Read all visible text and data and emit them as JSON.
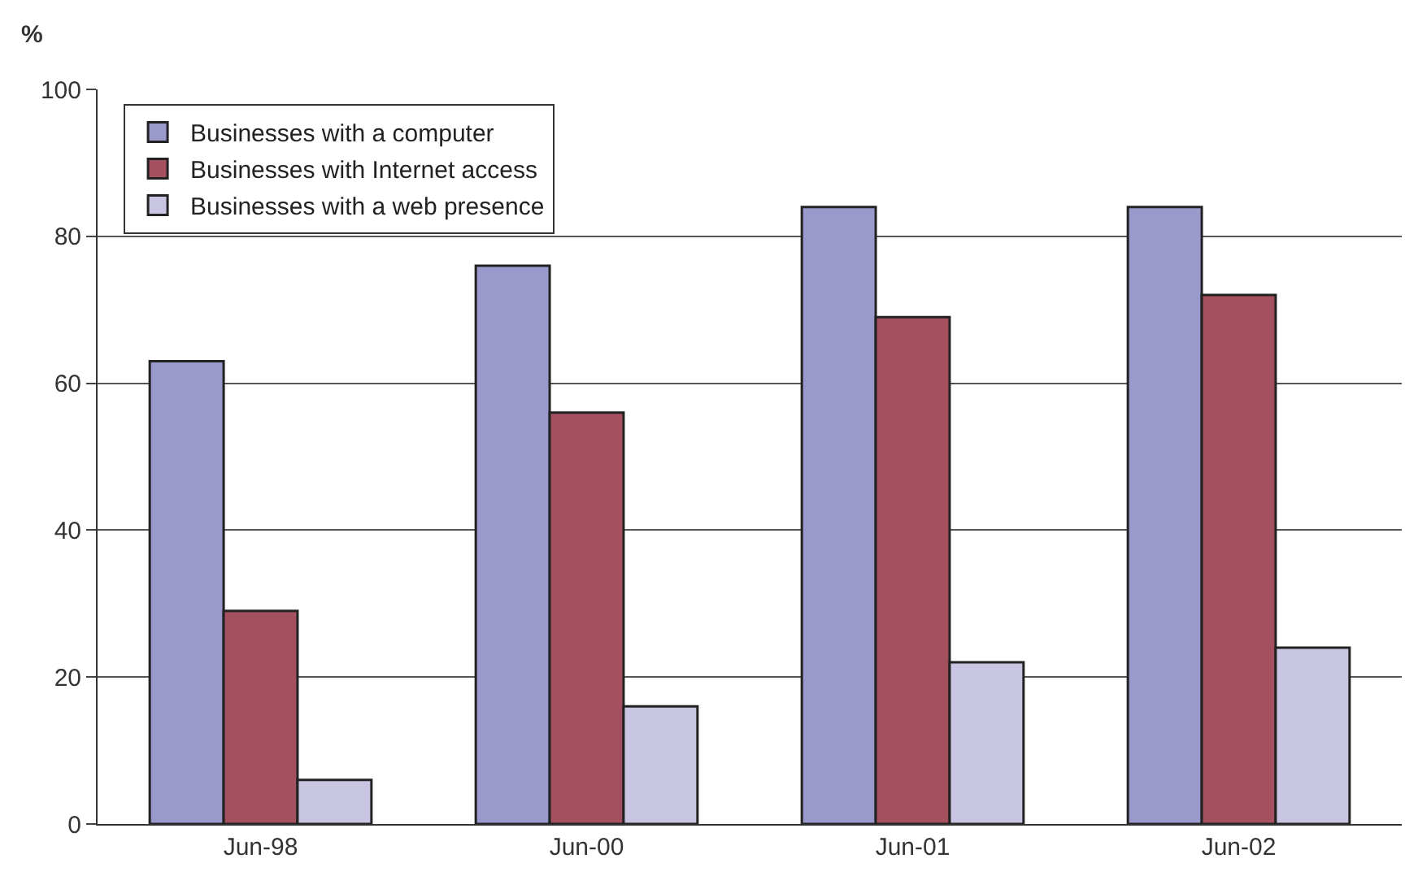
{
  "chart_data": {
    "type": "bar",
    "ylabel": "%",
    "categories": [
      "Jun-98",
      "Jun-00",
      "Jun-01",
      "Jun-02"
    ],
    "series": [
      {
        "name": "Businesses with a computer",
        "color": "#9999cc",
        "values": [
          63,
          76,
          84,
          84
        ]
      },
      {
        "name": "Businesses with Internet access",
        "color": "#a5505e",
        "values": [
          29,
          56,
          69,
          72
        ]
      },
      {
        "name": "Businesses with a web presence",
        "color": "#c8c5e3",
        "values": [
          6,
          16,
          22,
          24
        ]
      }
    ],
    "ylim": [
      0,
      100
    ],
    "yticks": [
      0,
      20,
      40,
      60,
      80,
      100
    ],
    "grid": "y",
    "legend": "top left"
  }
}
